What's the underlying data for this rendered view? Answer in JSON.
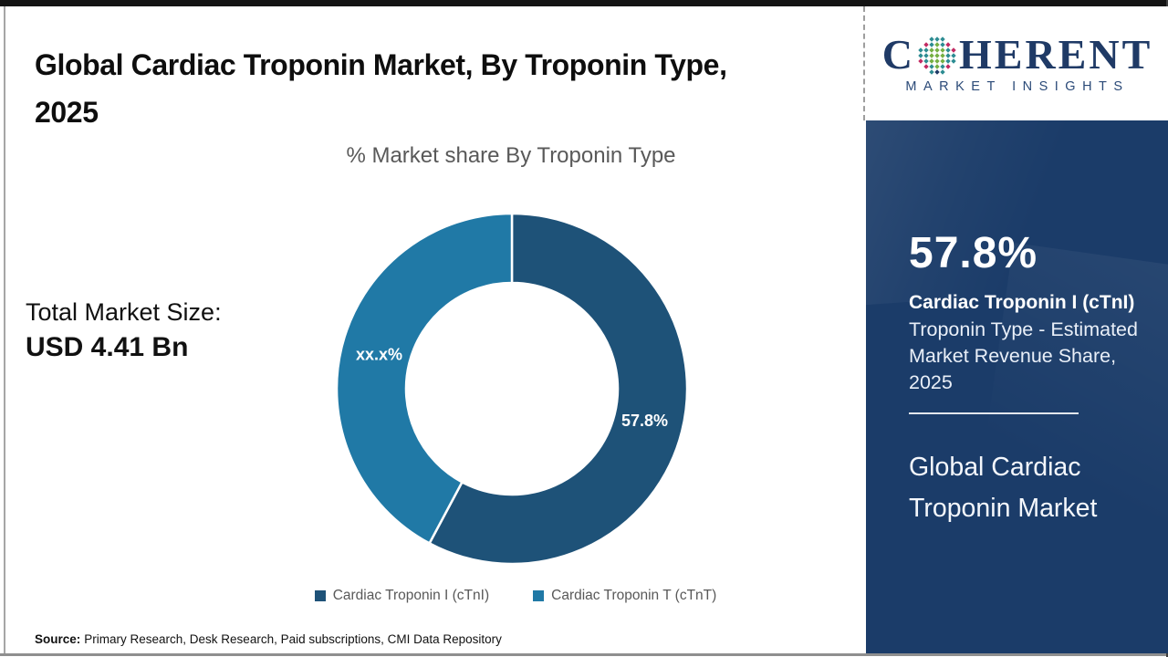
{
  "page": {
    "title": "Global Cardiac Troponin Market, By Troponin Type, 2025",
    "source_label": "Source:",
    "source_text": "Primary Research, Desk Research, Paid subscriptions, CMI Data Repository"
  },
  "chart_data": {
    "type": "pie",
    "donut": true,
    "title": "% Market share By Troponin Type",
    "categories": [
      "Cardiac Troponin I (cTnI)",
      "Cardiac Troponin T (cTnT)"
    ],
    "values": [
      57.8,
      42.2
    ],
    "slice_labels": [
      "57.8%",
      "xx.x%"
    ],
    "colors": [
      "#1e5278",
      "#2079a6"
    ],
    "start_angle_deg": 0,
    "direction": "clockwise",
    "legend_position": "bottom"
  },
  "total_market": {
    "label": "Total Market Size:",
    "value": "USD 4.41 Bn"
  },
  "side_panel": {
    "bg_color": "#1b3c69",
    "stat_value": "57.8%",
    "stat_bold": "Cardiac Troponin I (cTnI)",
    "stat_desc": "Troponin Type - Estimated Market Revenue Share, 2025",
    "panel_title": "Global Cardiac Troponin Market"
  },
  "logo": {
    "word_start": "C",
    "word_end": "HERENT",
    "subtitle": "MARKET INSIGHTS",
    "globe_colors": {
      "teal": "#2d8c92",
      "green": "#76b043",
      "crimson": "#c22a62",
      "navy": "#1f3a66"
    }
  }
}
